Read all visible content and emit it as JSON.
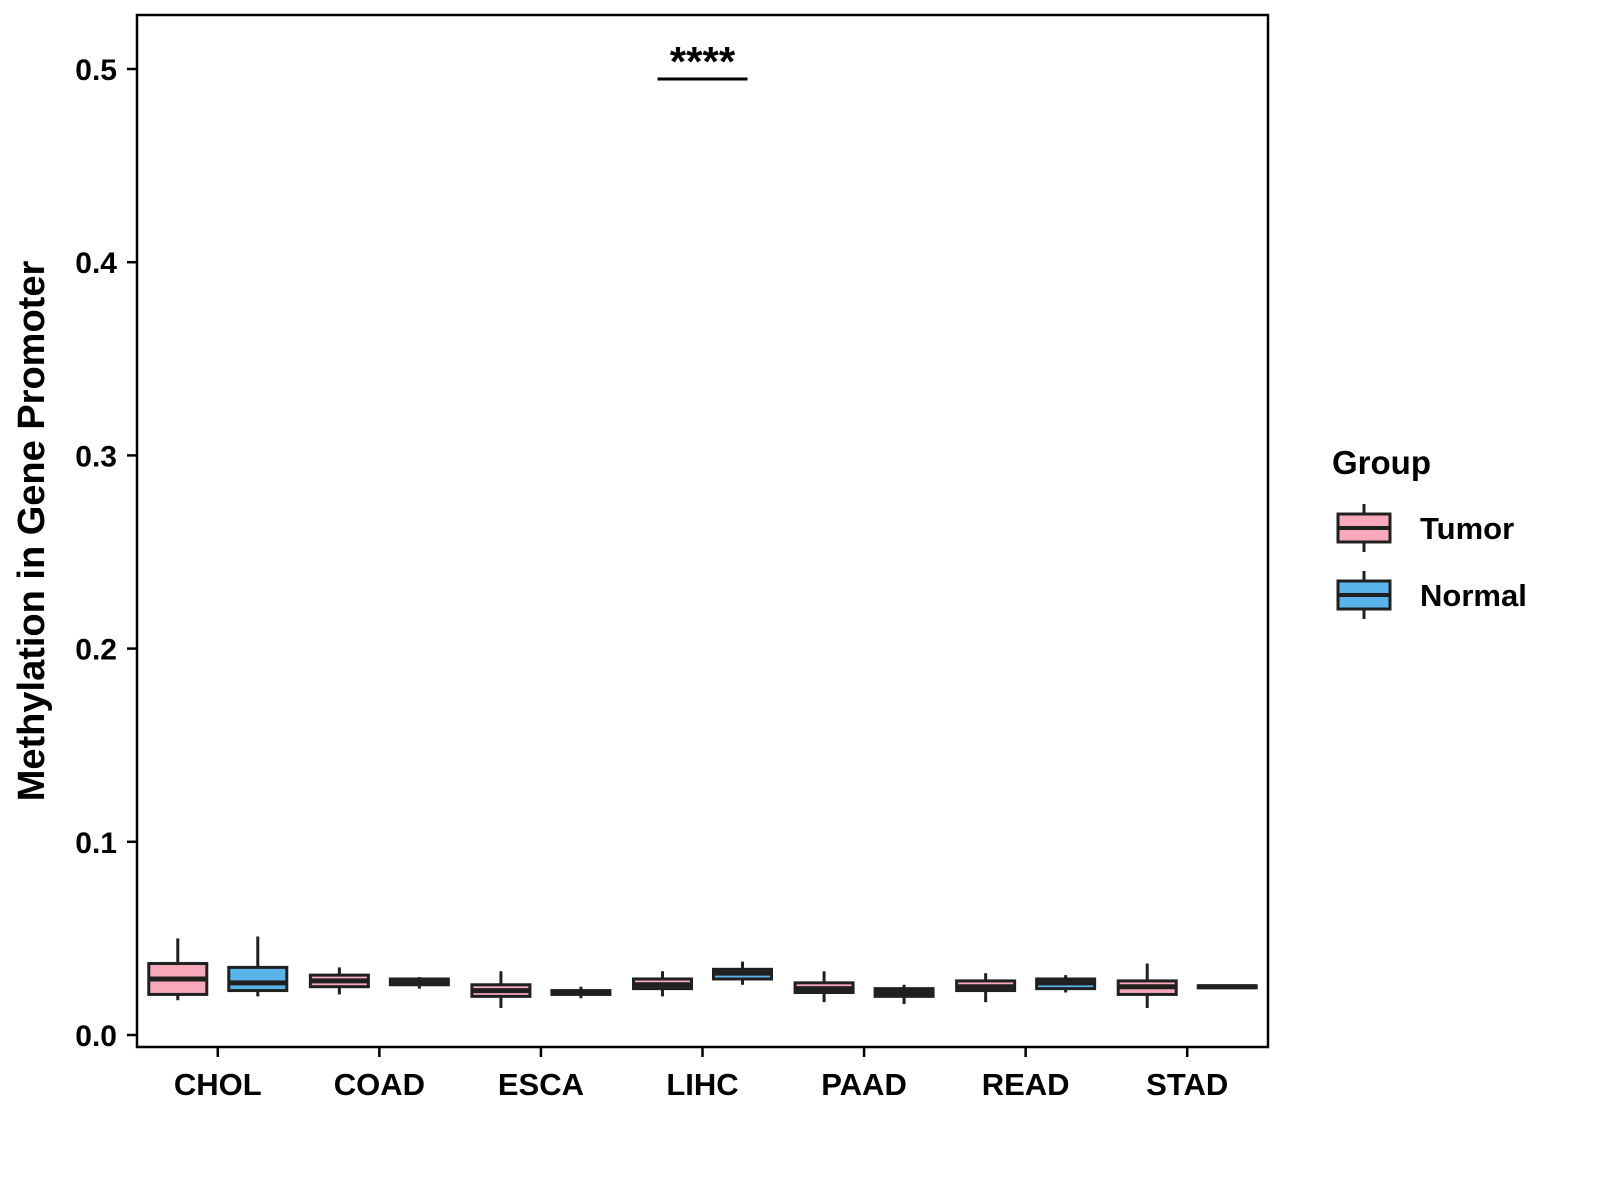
{
  "chart_data": {
    "type": "boxplot",
    "title": "",
    "xlabel": "",
    "ylabel": "Methylation in Gene Promoter",
    "ylim": [
      0,
      0.52
    ],
    "yticks": [
      "0.0",
      "0.1",
      "0.2",
      "0.3",
      "0.4",
      "0.5"
    ],
    "ytick_values": [
      0.0,
      0.1,
      0.2,
      0.3,
      0.4,
      0.5
    ],
    "categories": [
      "CHOL",
      "COAD",
      "ESCA",
      "LIHC",
      "PAAD",
      "READ",
      "STAD"
    ],
    "grid": false,
    "panel_border": true,
    "stroke_color": "#202020",
    "series": [
      {
        "name": "Tumor",
        "color": "#F9A8BC",
        "boxes": [
          {
            "low": 0.018,
            "q1": 0.021,
            "median": 0.029,
            "q3": 0.037,
            "high": 0.05
          },
          {
            "low": 0.021,
            "q1": 0.025,
            "median": 0.028,
            "q3": 0.031,
            "high": 0.035
          },
          {
            "low": 0.014,
            "q1": 0.02,
            "median": 0.023,
            "q3": 0.026,
            "high": 0.033
          },
          {
            "low": 0.02,
            "q1": 0.024,
            "median": 0.026,
            "q3": 0.029,
            "high": 0.033
          },
          {
            "low": 0.017,
            "q1": 0.022,
            "median": 0.024,
            "q3": 0.027,
            "high": 0.033
          },
          {
            "low": 0.017,
            "q1": 0.023,
            "median": 0.025,
            "q3": 0.028,
            "high": 0.032
          },
          {
            "low": 0.014,
            "q1": 0.021,
            "median": 0.025,
            "q3": 0.028,
            "high": 0.037
          }
        ]
      },
      {
        "name": "Normal",
        "color": "#5AB4E9",
        "boxes": [
          {
            "low": 0.02,
            "q1": 0.023,
            "median": 0.027,
            "q3": 0.035,
            "high": 0.051
          },
          {
            "low": 0.024,
            "q1": 0.026,
            "median": 0.027,
            "q3": 0.029,
            "high": 0.03
          },
          {
            "low": 0.019,
            "q1": 0.021,
            "median": 0.022,
            "q3": 0.023,
            "high": 0.025
          },
          {
            "low": 0.026,
            "q1": 0.029,
            "median": 0.032,
            "q3": 0.034,
            "high": 0.038
          },
          {
            "low": 0.016,
            "q1": 0.02,
            "median": 0.022,
            "q3": 0.024,
            "high": 0.026
          },
          {
            "low": 0.022,
            "q1": 0.024,
            "median": 0.027,
            "q3": 0.029,
            "high": 0.031
          },
          {
            "low": 0.024,
            "q1": 0.0245,
            "median": 0.025,
            "q3": 0.0255,
            "high": 0.026
          }
        ]
      }
    ],
    "legend": {
      "title": "Group",
      "position": "right",
      "entries": [
        {
          "label": "Tumor",
          "color": "#F9A8BC"
        },
        {
          "label": "Normal",
          "color": "#5AB4E9"
        }
      ]
    },
    "annotations": [
      {
        "text": "****",
        "category": "LIHC",
        "y": 0.5,
        "underline": true
      }
    ]
  }
}
